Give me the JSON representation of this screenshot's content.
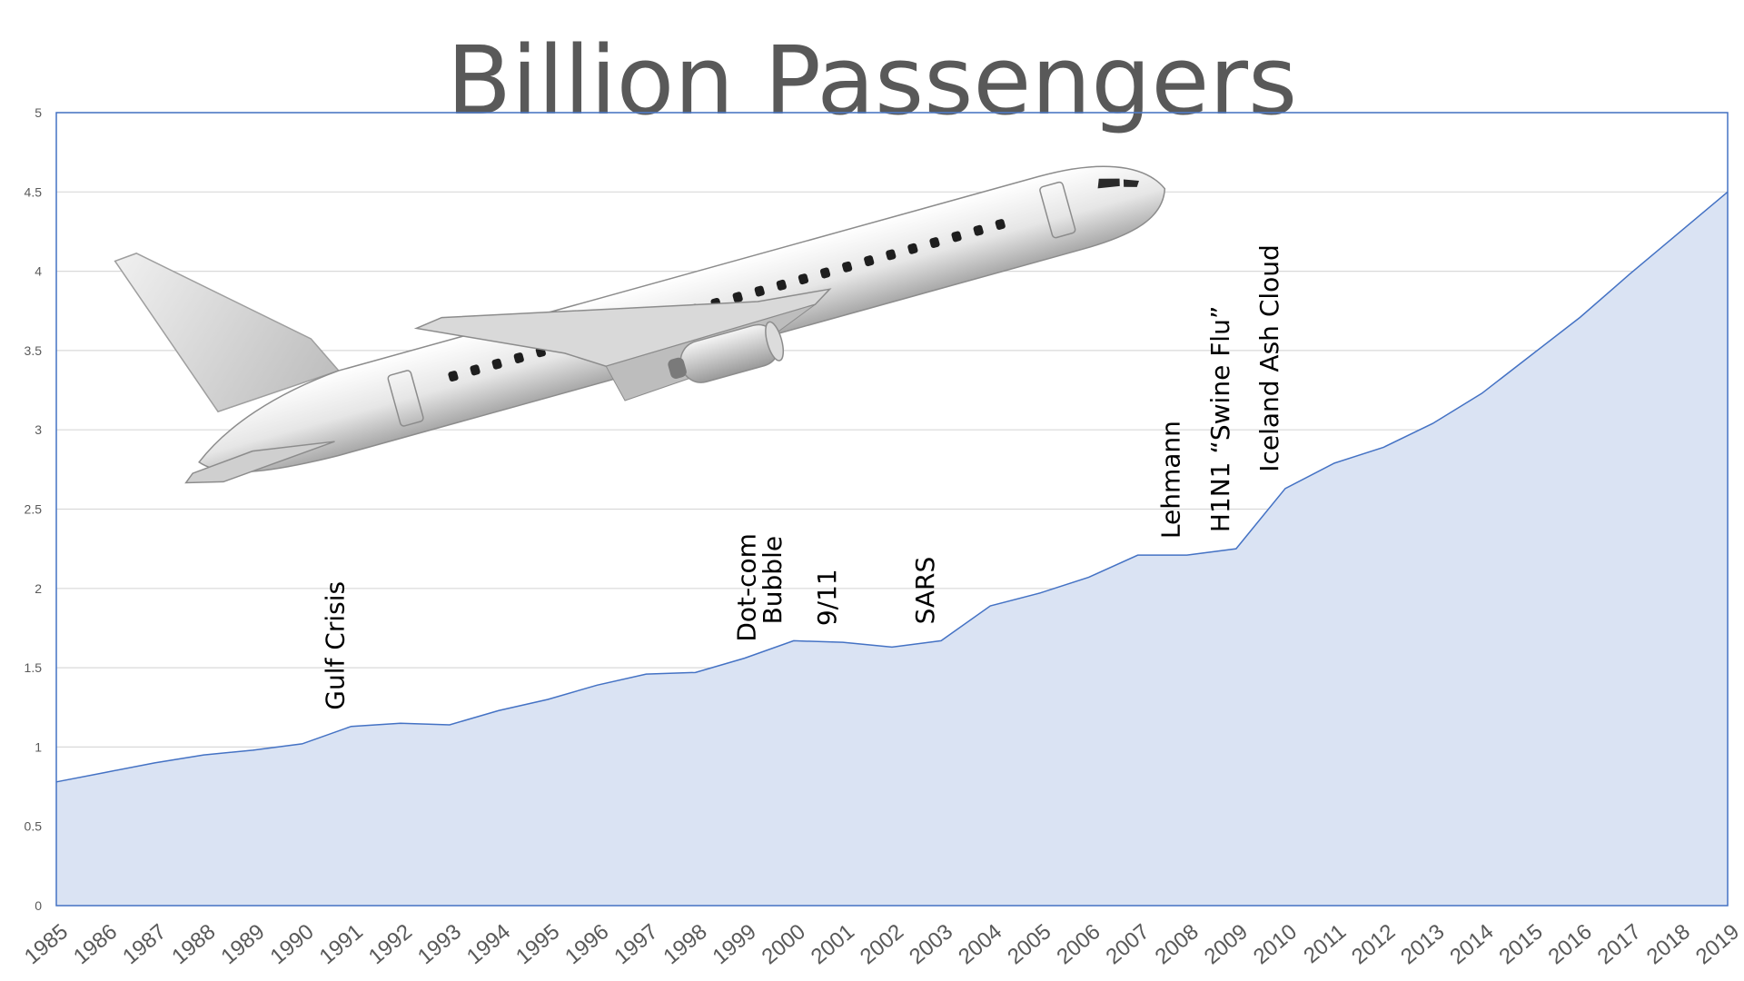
{
  "chart_data": {
    "type": "area",
    "title": "Billion Passengers",
    "xlabel": "",
    "ylabel": "",
    "ylim": [
      0,
      5
    ],
    "yticks": [
      "0",
      "0.5",
      "1",
      "1.5",
      "2",
      "2.5",
      "3",
      "3.5",
      "4",
      "4.5",
      "5"
    ],
    "grid": true,
    "categories": [
      "1985",
      "1986",
      "1987",
      "1988",
      "1989",
      "1990",
      "1991",
      "1992",
      "1993",
      "1994",
      "1995",
      "1996",
      "1997",
      "1998",
      "1999",
      "2000",
      "2001",
      "2002",
      "2003",
      "2004",
      "2005",
      "2006",
      "2007",
      "2008",
      "2009",
      "2010",
      "2011",
      "2012",
      "2013",
      "2014",
      "2015",
      "2016",
      "2017",
      "2018",
      "2019"
    ],
    "values": [
      0.78,
      0.84,
      0.9,
      0.95,
      0.98,
      1.02,
      1.13,
      1.15,
      1.14,
      1.23,
      1.3,
      1.39,
      1.46,
      1.47,
      1.56,
      1.67,
      1.66,
      1.63,
      1.67,
      1.89,
      1.97,
      2.07,
      2.21,
      2.21,
      2.25,
      2.63,
      2.79,
      2.89,
      3.04,
      3.23,
      3.47,
      3.71,
      3.98,
      4.24,
      4.5
    ],
    "colors": {
      "fill": "#dae3f3",
      "line": "#4472c4",
      "grid": "#d9d9d9",
      "frame": "#4472c4"
    },
    "annotations": [
      {
        "text": "Gulf Crisis",
        "x": "1991"
      },
      {
        "text": "Dot-com",
        "x": "1999"
      },
      {
        "text": "Bubble",
        "x": "2000"
      },
      {
        "text": "9/11",
        "x": "2001"
      },
      {
        "text": "SARS",
        "x": "2003"
      },
      {
        "text": "Lehmann",
        "x": "2008"
      },
      {
        "text": "H1N1 “Swine Flu”",
        "x": "2009"
      },
      {
        "text": "Iceland Ash Cloud",
        "x": "2010"
      }
    ],
    "image": {
      "subject": "airplane-illustration"
    }
  }
}
